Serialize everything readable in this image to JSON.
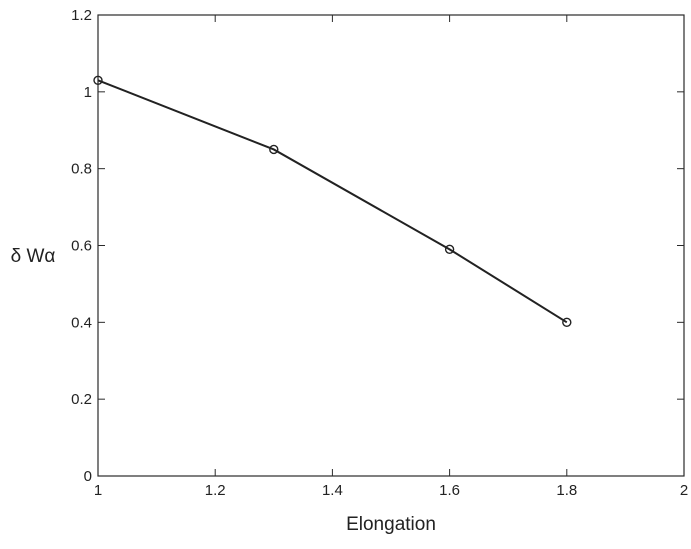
{
  "chart_data": {
    "type": "line",
    "title": "",
    "xlabel": "Elongation",
    "ylabel": "δ Wα",
    "xlim": [
      1,
      2
    ],
    "ylim": [
      0,
      1.2
    ],
    "x_ticks": [
      1,
      1.2,
      1.4,
      1.6,
      1.8,
      2
    ],
    "x_tick_labels": [
      "1",
      "1.2",
      "1.4",
      "1.6",
      "1.8",
      "2"
    ],
    "y_ticks": [
      0,
      0.2,
      0.4,
      0.6,
      0.8,
      1,
      1.2
    ],
    "y_tick_labels": [
      "0",
      "0.2",
      "0.4",
      "0.6",
      "0.8",
      "1",
      "1.2"
    ],
    "grid": false,
    "legend": "none",
    "series": [
      {
        "x": [
          1.0,
          1.3,
          1.6,
          1.8
        ],
        "y": [
          1.03,
          0.85,
          0.59,
          0.4
        ],
        "marker": "circle",
        "color": "#222222"
      }
    ]
  }
}
